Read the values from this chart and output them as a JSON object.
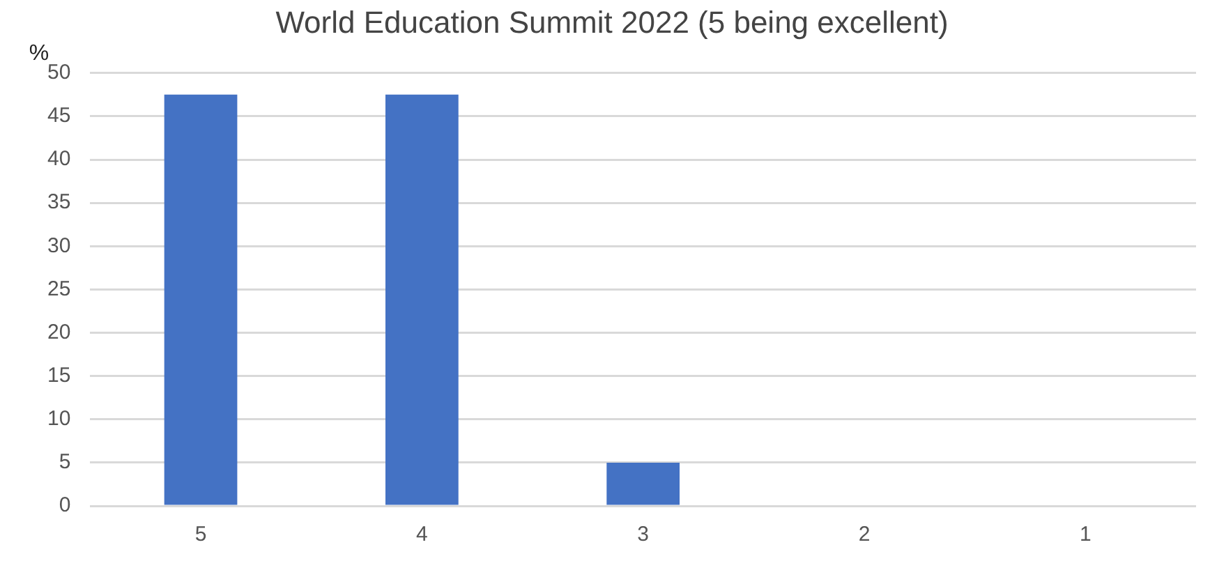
{
  "chart_data": {
    "type": "bar",
    "title": "World Education Summit 2022 (5 being excellent)",
    "ylabel": "%",
    "categories": [
      "5",
      "4",
      "3",
      "2",
      "1"
    ],
    "values": [
      47.5,
      47.5,
      5,
      0,
      0
    ],
    "color": "#4472c4",
    "ylim": [
      0,
      50
    ],
    "yticks": [
      0,
      5,
      10,
      15,
      20,
      25,
      30,
      35,
      40,
      45,
      50
    ],
    "grid": "y",
    "legend": false
  }
}
